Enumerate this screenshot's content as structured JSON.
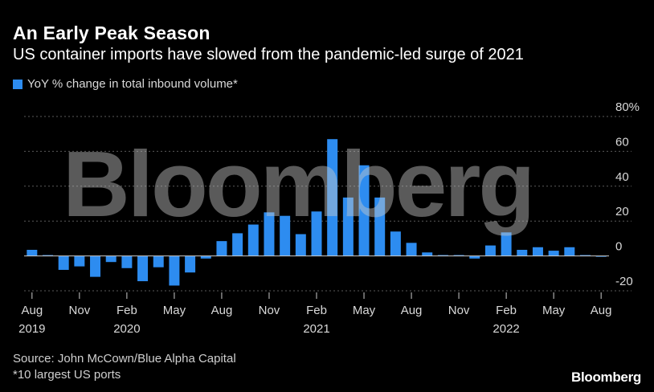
{
  "header": {
    "title": "An Early Peak Season",
    "subtitle": "US container imports have slowed from the pandemic-led surge of 2021"
  },
  "legend": {
    "label": "YoY % change in total inbound volume*"
  },
  "footer": {
    "source": "Source: John McCown/Blue Alpha Capital",
    "note": "*10 largest US ports",
    "brand": "Bloomberg"
  },
  "watermark": "Bloomberg",
  "colors": {
    "bar": "#2d8cf0",
    "grid": "#5a5a5a",
    "axis": "#cccccc",
    "text": "#d9d9d9",
    "background": "#000000"
  },
  "chart_data": {
    "type": "bar",
    "title": "An Early Peak Season",
    "subtitle": "US container imports have slowed from the pandemic-led surge of 2021",
    "ylim": [
      -20,
      80
    ],
    "yticks": [
      -20,
      0,
      20,
      40,
      60,
      80
    ],
    "ytick_labels": [
      "-20",
      "0",
      "20",
      "40",
      "60",
      "80%"
    ],
    "grid": true,
    "legend_position": "top-left",
    "x_tick_labels": [
      {
        "index": 0,
        "month": "Aug",
        "year": "2019"
      },
      {
        "index": 3,
        "month": "Nov",
        "year": ""
      },
      {
        "index": 6,
        "month": "Feb",
        "year": "2020"
      },
      {
        "index": 9,
        "month": "May",
        "year": ""
      },
      {
        "index": 12,
        "month": "Aug",
        "year": ""
      },
      {
        "index": 15,
        "month": "Nov",
        "year": ""
      },
      {
        "index": 18,
        "month": "Feb",
        "year": "2021"
      },
      {
        "index": 21,
        "month": "May",
        "year": ""
      },
      {
        "index": 24,
        "month": "Aug",
        "year": ""
      },
      {
        "index": 27,
        "month": "Nov",
        "year": ""
      },
      {
        "index": 30,
        "month": "Feb",
        "year": "2022"
      },
      {
        "index": 33,
        "month": "May",
        "year": ""
      },
      {
        "index": 36,
        "month": "Aug",
        "year": ""
      }
    ],
    "categories": [
      "2019-08",
      "2019-09",
      "2019-10",
      "2019-11",
      "2019-12",
      "2020-01",
      "2020-02",
      "2020-03",
      "2020-04",
      "2020-05",
      "2020-06",
      "2020-07",
      "2020-08",
      "2020-09",
      "2020-10",
      "2020-11",
      "2020-12",
      "2021-01",
      "2021-02",
      "2021-03",
      "2021-04",
      "2021-05",
      "2021-06",
      "2021-07",
      "2021-08",
      "2021-09",
      "2021-10",
      "2021-11",
      "2021-12",
      "2022-01",
      "2022-02",
      "2022-03",
      "2022-04",
      "2022-05",
      "2022-06",
      "2022-07",
      "2022-08"
    ],
    "series": [
      {
        "name": "YoY % change in total inbound volume*",
        "values": [
          3.5,
          0.5,
          -8,
          -6,
          -12,
          -3.5,
          -7,
          -14.5,
          -6.5,
          -17,
          -9.5,
          -1.5,
          8.5,
          13,
          18,
          25,
          23,
          12.5,
          25.5,
          67,
          33.5,
          52,
          33.5,
          14,
          7.5,
          2,
          0.5,
          0.5,
          -1.5,
          6,
          13.5,
          3.5,
          5,
          3,
          5,
          0.5,
          -0.5
        ]
      }
    ]
  }
}
